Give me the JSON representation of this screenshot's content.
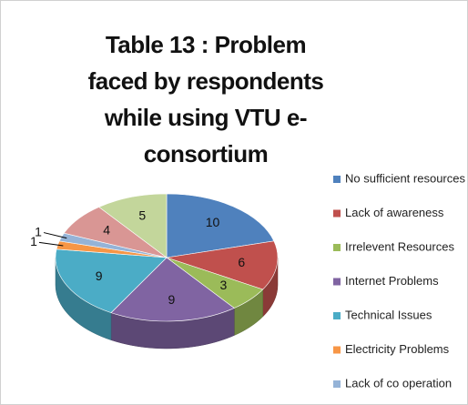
{
  "chart_data": {
    "type": "pie",
    "title": "Table 13 : Problem faced by respondents while using VTU e-consortium",
    "categories": [
      "No sufficient resources",
      "Lack of awareness",
      "Irrelevent Resources",
      "Internet Problems",
      "Technical Issues",
      "Electricity Problems",
      "Lack of co operation",
      null,
      null
    ],
    "values": [
      10,
      6,
      3,
      9,
      9,
      1,
      1,
      4,
      5
    ],
    "colors": [
      "#4f81bd",
      "#c0504d",
      "#9bbb59",
      "#8064a2",
      "#4bacc6",
      "#f79646",
      "#95b3d7",
      "#d99694",
      "#c3d69b"
    ],
    "legend": "right"
  }
}
